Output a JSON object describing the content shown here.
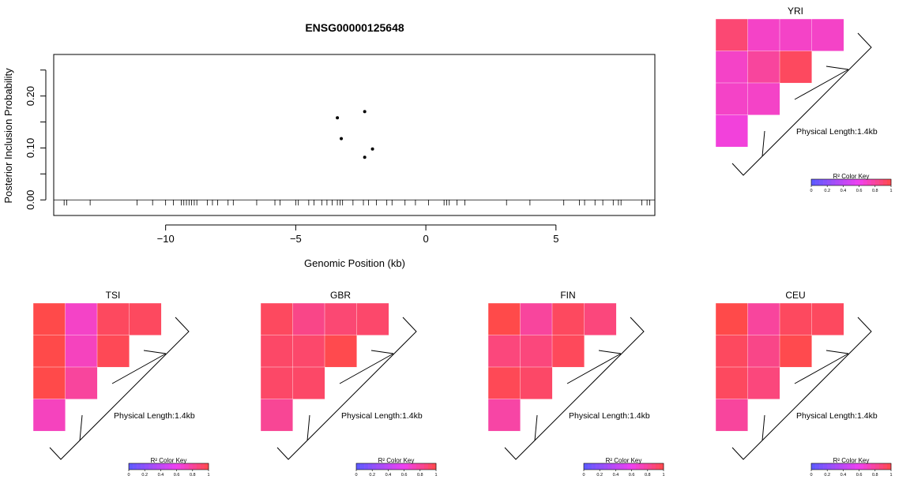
{
  "colors": {
    "ld_low": "#5b5bff",
    "ld_mid": "#f040f0",
    "ld_high": "#ff4a4a"
  },
  "main_plot": {
    "title": "ENSG00000125648",
    "xlabel": "Genomic Position (kb)",
    "ylabel": "Posterior Inclusion Probability"
  },
  "chart_data": [
    {
      "type": "scatter",
      "title": "ENSG00000125648",
      "xlabel": "Genomic Position (kb)",
      "ylabel": "Posterior Inclusion Probability",
      "xlim": [
        -14.3,
        8.8
      ],
      "ylim": [
        -0.03,
        0.28
      ],
      "xticks": [
        -10,
        -5,
        0,
        5
      ],
      "xtick_labels": [
        "−10",
        "−5",
        "0",
        "5"
      ],
      "yticks": [
        0.0,
        0.1,
        0.2
      ],
      "ytick_labels": [
        "0.00",
        "0.10",
        "0.20"
      ],
      "points": [
        {
          "x": -3.4,
          "y": 0.158
        },
        {
          "x": -3.25,
          "y": 0.118
        },
        {
          "x": -2.35,
          "y": 0.17
        },
        {
          "x": -2.35,
          "y": 0.082
        },
        {
          "x": -2.05,
          "y": 0.098
        }
      ],
      "snp_positions": [
        -13.9,
        -13.8,
        -12.9,
        -11.1,
        -10.5,
        -10.0,
        -9.7,
        -9.4,
        -9.3,
        -9.2,
        -9.1,
        -9.0,
        -8.9,
        -8.8,
        -8.4,
        -8.2,
        -8.0,
        -7.6,
        -7.4,
        -6.5,
        -5.8,
        -5.6,
        -5.0,
        -4.9,
        -4.5,
        -4.3,
        -4.0,
        -3.8,
        -3.6,
        -3.4,
        -3.3,
        -3.2,
        -2.8,
        -2.4,
        -2.2,
        -1.9,
        -1.5,
        -1.3,
        -0.8,
        -0.4,
        0.1,
        0.7,
        0.8,
        0.9,
        1.2,
        1.5,
        3.1,
        4.0,
        5.3,
        5.9,
        6.1,
        6.5,
        6.8,
        7.2,
        7.4,
        7.5,
        8.3,
        8.5,
        8.6
      ]
    },
    {
      "type": "heatmap",
      "title": "YRI",
      "annotation": "Physical Length:1.4kb",
      "matrix": [
        [
          0.9,
          0.7,
          0.7,
          0.7
        ],
        [
          0.7,
          0.8,
          0.95
        ],
        [
          0.7,
          0.7
        ],
        [
          0.65
        ]
      ]
    },
    {
      "type": "heatmap",
      "title": "TSI",
      "annotation": "Physical Length:1.4kb",
      "matrix": [
        [
          1.0,
          0.7,
          0.95,
          0.95
        ],
        [
          1.0,
          0.72,
          0.97
        ],
        [
          1.0,
          0.8
        ],
        [
          0.72
        ]
      ]
    },
    {
      "type": "heatmap",
      "title": "GBR",
      "annotation": "Physical Length:1.4kb",
      "matrix": [
        [
          0.95,
          0.85,
          0.9,
          0.92
        ],
        [
          0.93,
          0.92,
          0.99
        ],
        [
          0.93,
          0.93
        ],
        [
          0.82
        ]
      ]
    },
    {
      "type": "heatmap",
      "title": "FIN",
      "annotation": "Physical Length:1.4kb",
      "matrix": [
        [
          1.0,
          0.8,
          0.95,
          0.88
        ],
        [
          0.88,
          0.88,
          0.96
        ],
        [
          0.97,
          0.93
        ],
        [
          0.78
        ]
      ]
    },
    {
      "type": "heatmap",
      "title": "CEU",
      "annotation": "Physical Length:1.4kb",
      "matrix": [
        [
          1.0,
          0.8,
          0.95,
          0.95
        ],
        [
          0.95,
          0.85,
          0.99
        ],
        [
          0.95,
          0.88
        ],
        [
          0.8
        ]
      ]
    }
  ],
  "color_key": {
    "label": "R² Color Key",
    "ticks": [
      "0",
      "0.2",
      "0.4",
      "0.6",
      "0.8",
      "1"
    ]
  }
}
